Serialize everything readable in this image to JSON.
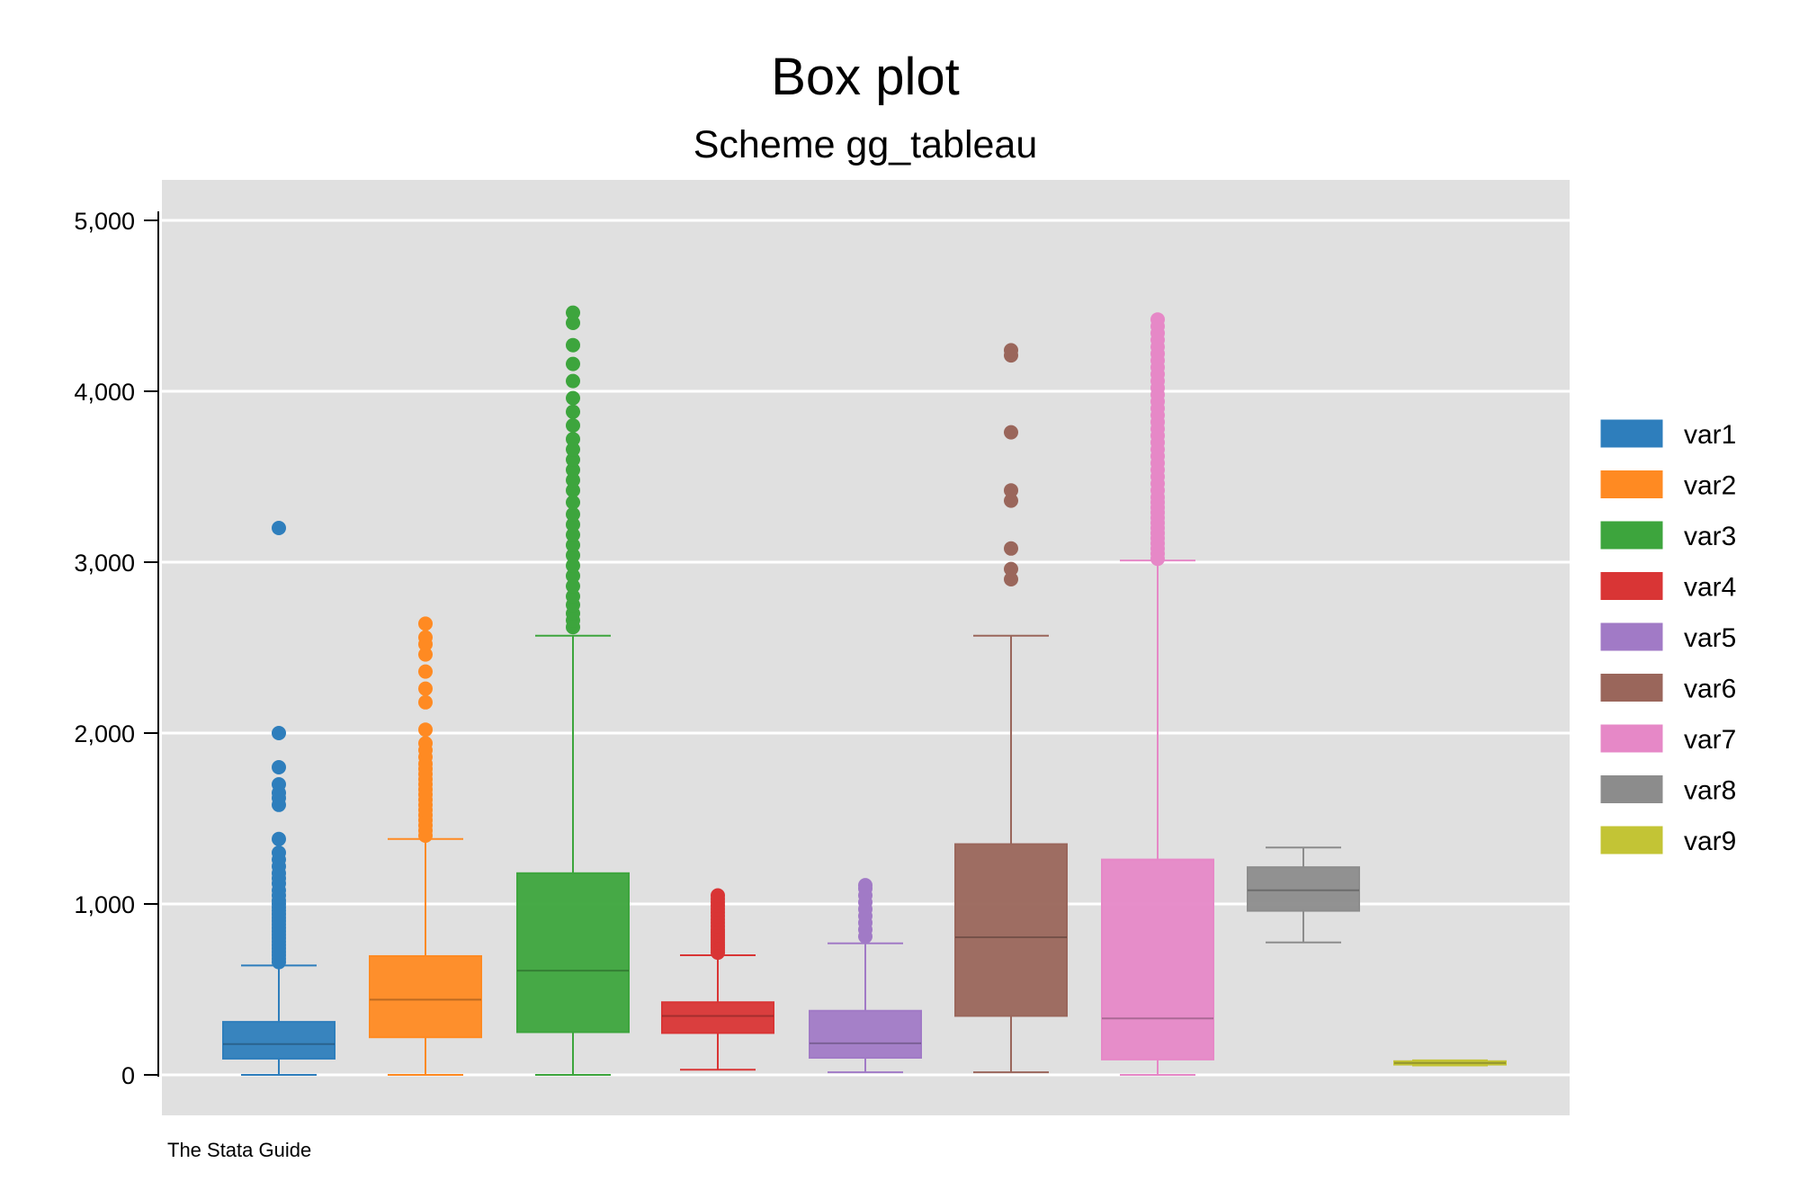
{
  "chart_data": {
    "type": "boxplot",
    "title": "Box plot",
    "subtitle": "Scheme gg_tableau",
    "note": "The Stata Guide",
    "ylim": [
      0,
      5000
    ],
    "yticks": [
      0,
      1000,
      2000,
      3000,
      4000,
      5000
    ],
    "ytick_labels": [
      "0",
      "1,000",
      "2,000",
      "3,000",
      "4,000",
      "5,000"
    ],
    "legend_position": "right",
    "series": [
      {
        "name": "var1",
        "color": "#2e7ebc",
        "whisker_low": 0,
        "q1": 95,
        "median": 180,
        "q3": 310,
        "whisker_high": 640,
        "outliers": [
          660,
          680,
          700,
          720,
          740,
          760,
          780,
          800,
          820,
          840,
          860,
          880,
          900,
          920,
          940,
          960,
          980,
          1000,
          1020,
          1050,
          1080,
          1120,
          1150,
          1180,
          1220,
          1260,
          1300,
          1380,
          1580,
          1620,
          1650,
          1700,
          1800,
          2000,
          3200
        ]
      },
      {
        "name": "var2",
        "color": "#ff8a22",
        "whisker_low": 0,
        "q1": 220,
        "median": 440,
        "q3": 695,
        "whisker_high": 1380,
        "outliers": [
          1400,
          1430,
          1460,
          1490,
          1520,
          1550,
          1580,
          1610,
          1640,
          1670,
          1700,
          1730,
          1760,
          1790,
          1820,
          1860,
          1900,
          1940,
          2020,
          2180,
          2260,
          2360,
          2460,
          2520,
          2560,
          2640
        ]
      },
      {
        "name": "var3",
        "color": "#3da53d",
        "whisker_low": 0,
        "q1": 250,
        "median": 610,
        "q3": 1180,
        "whisker_high": 2570,
        "outliers": [
          2620,
          2660,
          2700,
          2750,
          2800,
          2860,
          2920,
          2980,
          3040,
          3100,
          3160,
          3220,
          3280,
          3350,
          3420,
          3480,
          3540,
          3600,
          3660,
          3720,
          3800,
          3880,
          3960,
          4060,
          4160,
          4270,
          4400,
          4460
        ]
      },
      {
        "name": "var4",
        "color": "#d93535",
        "whisker_low": 30,
        "q1": 245,
        "median": 345,
        "q3": 425,
        "whisker_high": 700,
        "outliers": [
          715,
          730,
          745,
          760,
          775,
          790,
          805,
          820,
          835,
          850,
          870,
          890,
          910,
          930,
          950,
          970,
          990,
          1010,
          1030,
          1050
        ]
      },
      {
        "name": "var5",
        "color": "#a17ac6",
        "whisker_low": 15,
        "q1": 100,
        "median": 185,
        "q3": 375,
        "whisker_high": 770,
        "outliers": [
          810,
          850,
          890,
          930,
          970,
          1010,
          1050,
          1090,
          1110
        ]
      },
      {
        "name": "var6",
        "color": "#9a665b",
        "whisker_low": 15,
        "q1": 345,
        "median": 805,
        "q3": 1350,
        "whisker_high": 2570,
        "outliers": [
          2900,
          2960,
          3080,
          3360,
          3420,
          3760,
          4210,
          4240
        ]
      },
      {
        "name": "var7",
        "color": "#e688c7",
        "whisker_low": 0,
        "q1": 90,
        "median": 330,
        "q3": 1260,
        "whisker_high": 3010,
        "outliers": [
          3020,
          3050,
          3080,
          3110,
          3140,
          3170,
          3200,
          3230,
          3260,
          3290,
          3320,
          3350,
          3380,
          3420,
          3460,
          3500,
          3540,
          3580,
          3620,
          3660,
          3700,
          3740,
          3780,
          3820,
          3860,
          3900,
          3940,
          3980,
          4020,
          4060,
          4100,
          4140,
          4180,
          4220,
          4260,
          4300,
          4340,
          4380,
          4420
        ]
      },
      {
        "name": "var8",
        "color": "#8c8c8c",
        "whisker_low": 775,
        "q1": 960,
        "median": 1080,
        "q3": 1215,
        "whisker_high": 1330,
        "outliers": []
      },
      {
        "name": "var9",
        "color": "#c3c435",
        "whisker_low": 55,
        "q1": 60,
        "median": 70,
        "q3": 80,
        "whisker_high": 85,
        "outliers": []
      }
    ]
  }
}
